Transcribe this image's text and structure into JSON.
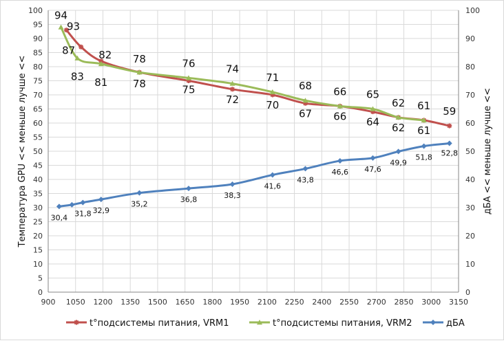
{
  "chart_data": {
    "type": "line",
    "title": "",
    "xlabel": "",
    "ylabel": "Температура GPU << меньше лучше <<",
    "y2label": "дБА << меньше лучше <<",
    "xlim": [
      900,
      3150
    ],
    "x_ticks": [
      900,
      1050,
      1200,
      1350,
      1500,
      1650,
      1800,
      1950,
      2100,
      2250,
      2400,
      2550,
      2700,
      2850,
      3000,
      3150
    ],
    "ylim": [
      0,
      100
    ],
    "y_ticks": [
      0,
      5,
      10,
      15,
      20,
      25,
      30,
      35,
      40,
      45,
      50,
      55,
      60,
      65,
      70,
      75,
      80,
      85,
      90,
      95,
      100
    ],
    "y2lim": [
      0,
      100
    ],
    "y2_ticks": [
      0,
      10,
      20,
      30,
      40,
      50,
      60,
      70,
      80,
      90,
      100
    ],
    "grid": true,
    "legend_position": "bottom",
    "series": [
      {
        "name": "t°подсистемы питания, VRM1",
        "color": "#c0504d",
        "axis": "left",
        "x": [
          1000,
          1080,
          1190,
          1400,
          1670,
          1910,
          2130,
          2310,
          2500,
          2680,
          2820,
          2960,
          3100
        ],
        "y": [
          93,
          87,
          82,
          78,
          75,
          72,
          70,
          67,
          66,
          64,
          62,
          61,
          59
        ],
        "labels": [
          "93",
          "87",
          "82",
          "78",
          "75",
          "72",
          "70",
          "67",
          "66",
          "64",
          "62",
          "61",
          "59"
        ]
      },
      {
        "name": "t°подсистемы питания, VRM2",
        "color": "#9bbb59",
        "axis": "left",
        "x": [
          970,
          1060,
          1190,
          1400,
          1670,
          1910,
          2130,
          2310,
          2500,
          2680,
          2820,
          2960
        ],
        "y": [
          94,
          83,
          81,
          78,
          76,
          74,
          71,
          68,
          66,
          65,
          62,
          61
        ],
        "labels": [
          "94",
          "83",
          "81",
          "78",
          "76",
          "74",
          "71",
          "68",
          "66",
          "65",
          "62",
          "61"
        ]
      },
      {
        "name": "дБА",
        "color": "#4f81bd",
        "axis": "right",
        "x": [
          960,
          1030,
          1090,
          1190,
          1400,
          1670,
          1910,
          2130,
          2310,
          2500,
          2680,
          2820,
          2960,
          3100
        ],
        "y": [
          30.4,
          31.0,
          31.8,
          32.9,
          35.2,
          36.8,
          38.3,
          41.6,
          43.8,
          46.6,
          47.6,
          49.9,
          51.8,
          52.8
        ],
        "labels": [
          "30,4",
          "",
          "31,8",
          "32,9",
          "35,2",
          "36,8",
          "38,3",
          "41,6",
          "43,8",
          "46,6",
          "47,6",
          "49,9",
          "51,8",
          "52,8"
        ]
      }
    ]
  }
}
